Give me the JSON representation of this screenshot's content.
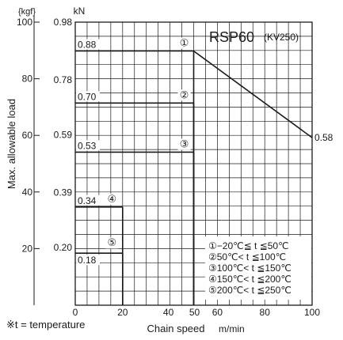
{
  "chart_data": {
    "type": "line",
    "title": "RSP60",
    "subtitle": "(KV250)",
    "xlabel": "Chain speed",
    "xunit": "m/min",
    "ylabel": "Max. allowable load",
    "y_unit_kgf": "{kgf}",
    "y_unit_kn": "kN",
    "footnote": "※t = temperature",
    "xlim": [
      0,
      100
    ],
    "ylim_kgf": [
      0,
      100
    ],
    "x_ticks": [
      0,
      20,
      40,
      50,
      60,
      80,
      100
    ],
    "x_tick_labels": [
      "0",
      "20",
      "40",
      "50",
      "60",
      "80",
      "100"
    ],
    "y_ticks_kgf": [
      20,
      40,
      60,
      80,
      100
    ],
    "y_tick_labels_kgf": [
      "20",
      "40",
      "60",
      "80",
      "100"
    ],
    "y_ticks_kn": [
      0.2,
      0.39,
      0.59,
      0.78,
      0.98
    ],
    "y_tick_labels_kn": [
      "0.20",
      "0.39",
      "0.59",
      "0.78",
      "0.98"
    ],
    "grid": true,
    "series": [
      {
        "marker": "①",
        "condition": "①−20℃≦ t ≦50℃",
        "x": [
          0,
          50,
          100
        ],
        "y_kn": [
          0.88,
          0.88,
          0.58
        ],
        "labels": [
          "0.88",
          "0.58"
        ]
      },
      {
        "marker": "②",
        "condition": "②50℃< t ≦100℃",
        "x": [
          0,
          50
        ],
        "y_kn": [
          0.7,
          0.7
        ],
        "labels": [
          "0.70"
        ]
      },
      {
        "marker": "③",
        "condition": "③100℃< t ≦150℃",
        "x": [
          0,
          50
        ],
        "y_kn": [
          0.53,
          0.53
        ],
        "labels": [
          "0.53"
        ]
      },
      {
        "marker": "④",
        "condition": "④150℃< t ≦200℃",
        "x": [
          0,
          20
        ],
        "y_kn": [
          0.34,
          0.34
        ],
        "labels": [
          "0.34"
        ]
      },
      {
        "marker": "⑤",
        "condition": "⑤200℃< t ≦250℃",
        "x": [
          0,
          20
        ],
        "y_kn": [
          0.18,
          0.18
        ],
        "labels": [
          "0.18"
        ]
      }
    ]
  }
}
